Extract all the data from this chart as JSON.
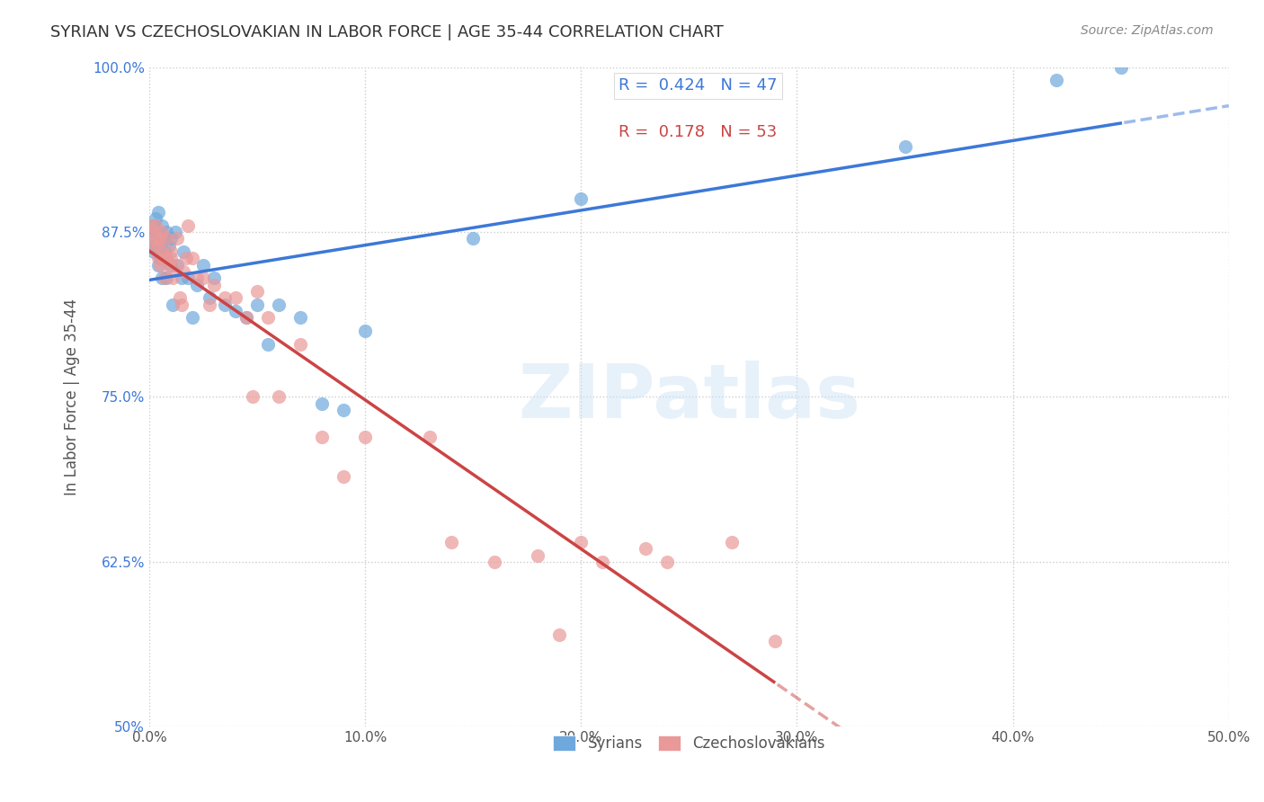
{
  "title": "SYRIAN VS CZECHOSLOVAKIAN IN LABOR FORCE | AGE 35-44 CORRELATION CHART",
  "source": "Source: ZipAtlas.com",
  "xlabel": "",
  "ylabel": "In Labor Force | Age 35-44",
  "xlim": [
    0.0,
    0.5
  ],
  "ylim": [
    0.5,
    1.0
  ],
  "xticks": [
    0.0,
    0.1,
    0.2,
    0.3,
    0.4,
    0.5
  ],
  "xticklabels": [
    "0.0%",
    "10.0%",
    "20.0%",
    "30.0%",
    "40.0%",
    "50.0%"
  ],
  "yticks": [
    0.5,
    0.625,
    0.75,
    0.875,
    1.0
  ],
  "yticklabels": [
    "50%",
    "62.5%",
    "75.0%",
    "87.5%",
    "100.0%"
  ],
  "syrian_color": "#6fa8dc",
  "czech_color": "#ea9999",
  "syrian_R": 0.424,
  "syrian_N": 47,
  "czech_R": 0.178,
  "czech_N": 53,
  "legend_R_color": "#3c78d8",
  "legend_N_color": "#cc0000",
  "grid_color": "#cccccc",
  "watermark": "ZIPatlas",
  "syrian_x": [
    0.001,
    0.002,
    0.002,
    0.003,
    0.003,
    0.003,
    0.004,
    0.004,
    0.005,
    0.005,
    0.005,
    0.006,
    0.006,
    0.007,
    0.007,
    0.008,
    0.008,
    0.008,
    0.009,
    0.01,
    0.01,
    0.011,
    0.012,
    0.013,
    0.015,
    0.016,
    0.018,
    0.02,
    0.022,
    0.025,
    0.028,
    0.03,
    0.035,
    0.04,
    0.045,
    0.05,
    0.055,
    0.06,
    0.07,
    0.08,
    0.09,
    0.1,
    0.15,
    0.2,
    0.35,
    0.42,
    0.45
  ],
  "syrian_y": [
    0.87,
    0.88,
    0.86,
    0.885,
    0.875,
    0.865,
    0.85,
    0.89,
    0.87,
    0.86,
    0.855,
    0.84,
    0.88,
    0.86,
    0.87,
    0.855,
    0.875,
    0.84,
    0.865,
    0.85,
    0.87,
    0.82,
    0.875,
    0.85,
    0.84,
    0.86,
    0.84,
    0.81,
    0.835,
    0.85,
    0.825,
    0.84,
    0.82,
    0.815,
    0.81,
    0.82,
    0.79,
    0.82,
    0.81,
    0.745,
    0.74,
    0.8,
    0.87,
    0.9,
    0.94,
    0.99,
    1.0
  ],
  "czech_x": [
    0.001,
    0.002,
    0.002,
    0.003,
    0.003,
    0.004,
    0.004,
    0.005,
    0.005,
    0.006,
    0.006,
    0.007,
    0.007,
    0.008,
    0.008,
    0.009,
    0.01,
    0.01,
    0.011,
    0.012,
    0.013,
    0.014,
    0.015,
    0.016,
    0.017,
    0.018,
    0.02,
    0.022,
    0.025,
    0.028,
    0.03,
    0.035,
    0.04,
    0.045,
    0.048,
    0.05,
    0.055,
    0.06,
    0.07,
    0.08,
    0.09,
    0.1,
    0.13,
    0.14,
    0.16,
    0.18,
    0.19,
    0.2,
    0.21,
    0.23,
    0.24,
    0.27,
    0.29
  ],
  "czech_y": [
    0.88,
    0.875,
    0.865,
    0.87,
    0.88,
    0.865,
    0.855,
    0.87,
    0.85,
    0.875,
    0.86,
    0.855,
    0.84,
    0.87,
    0.855,
    0.85,
    0.855,
    0.86,
    0.84,
    0.85,
    0.87,
    0.825,
    0.82,
    0.845,
    0.855,
    0.88,
    0.855,
    0.84,
    0.84,
    0.82,
    0.835,
    0.825,
    0.825,
    0.81,
    0.75,
    0.83,
    0.81,
    0.75,
    0.79,
    0.72,
    0.69,
    0.72,
    0.72,
    0.64,
    0.625,
    0.63,
    0.57,
    0.64,
    0.625,
    0.635,
    0.625,
    0.64,
    0.565
  ]
}
